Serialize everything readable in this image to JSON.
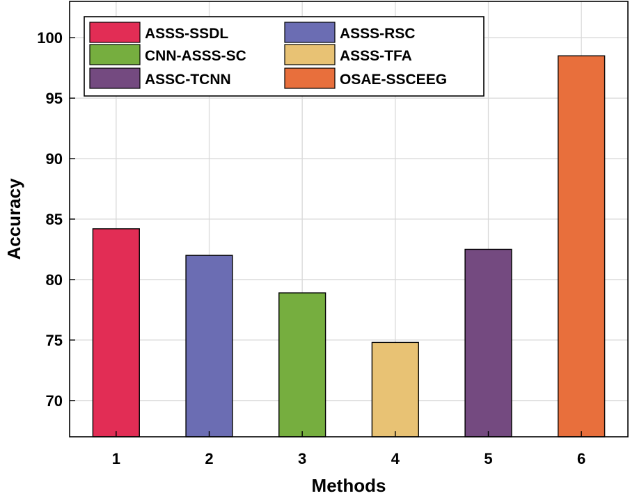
{
  "chart_data": {
    "type": "bar",
    "title": "",
    "xlabel": "Methods",
    "ylabel": "Accuracy",
    "categories": [
      "1",
      "2",
      "3",
      "4",
      "5",
      "6"
    ],
    "series": [
      {
        "name": "ASSS-SSDL",
        "color": "#e22d55",
        "values": [
          84.2,
          null,
          null,
          null,
          null,
          null
        ]
      },
      {
        "name": "ASSS-RSC",
        "color": "#6b6db3",
        "values": [
          null,
          82.0,
          null,
          null,
          null,
          null
        ]
      },
      {
        "name": "CNN-ASSS-SC",
        "color": "#76ae3f",
        "values": [
          null,
          null,
          78.9,
          null,
          null,
          null
        ]
      },
      {
        "name": "ASSS-TFA",
        "color": "#e8c274",
        "values": [
          null,
          null,
          null,
          74.8,
          null,
          null
        ]
      },
      {
        "name": "ASSC-TCNN",
        "color": "#744a80",
        "values": [
          null,
          null,
          null,
          null,
          82.5,
          null
        ]
      },
      {
        "name": "OSAE-SSCEEG",
        "color": "#e86f3c",
        "values": [
          null,
          null,
          null,
          null,
          null,
          98.5
        ]
      }
    ],
    "ylim": [
      67,
      103
    ],
    "yticks": [
      70,
      75,
      80,
      85,
      90,
      95,
      100
    ],
    "grid": true,
    "legend_position": "top-left",
    "legend_columns": 2
  }
}
